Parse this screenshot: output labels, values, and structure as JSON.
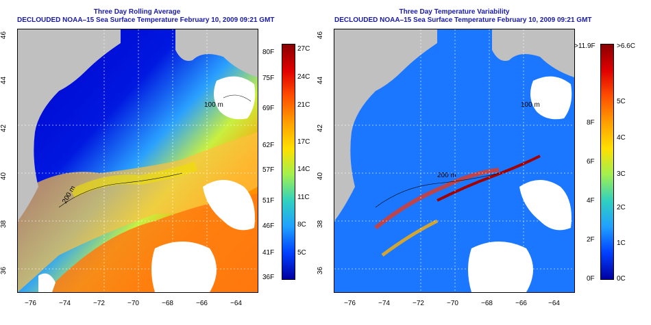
{
  "left": {
    "title1": "Three Day Rolling Average",
    "title2": "DECLOUDED NOAA–15 Sea Surface Temperature February 10, 2009 09:21 GMT",
    "contour_label_1": "200 m",
    "contour_label_2": "100 m",
    "colorbar_f": [
      "80F",
      "75F",
      "69F",
      "62F",
      "57F",
      "51F",
      "46F",
      "41F",
      "36F"
    ],
    "colorbar_c": [
      "27C",
      "24C",
      "21C",
      "17C",
      "14C",
      "11C",
      "8C",
      "5C"
    ]
  },
  "right": {
    "title1": "Three Day Temperature Variability",
    "title2": "DECLOUDED NOAA–15 Sea Surface Temperature February 10, 2009 09:21 GMT",
    "contour_label_1": "200 m",
    "contour_label_2": "100 m",
    "colorbar_f": [
      ">11.9F",
      "8F",
      "6F",
      "4F",
      "2F",
      "0F"
    ],
    "colorbar_c": [
      ">6.6C",
      "5C",
      "4C",
      "3C",
      "2C",
      "1C",
      "0C"
    ]
  },
  "axes": {
    "x_ticks": [
      "−76",
      "−74",
      "−72",
      "−70",
      "−68",
      "−66",
      "−64"
    ],
    "y_ticks": [
      "46",
      "44",
      "42",
      "40",
      "38",
      "36"
    ]
  },
  "colors": {
    "title": "#1a1aa8",
    "land": "#c0c0c0"
  }
}
